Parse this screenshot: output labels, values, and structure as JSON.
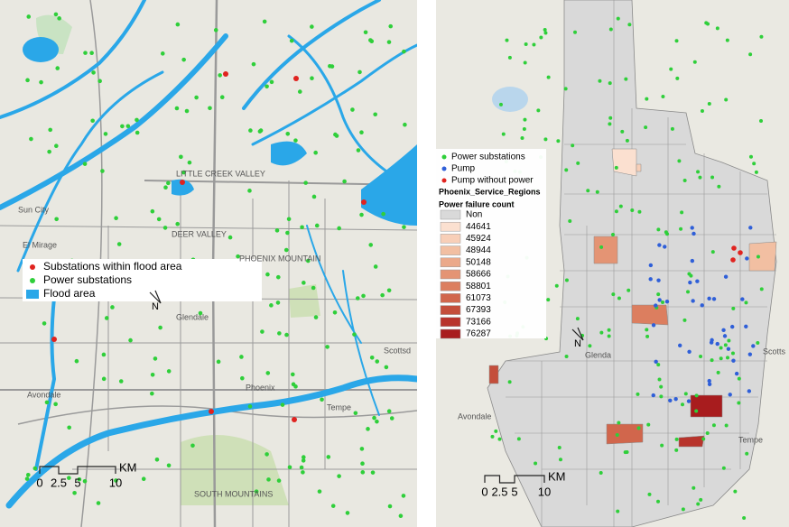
{
  "left_map": {
    "legend": [
      {
        "label": "Substations within flood area",
        "color": "#e0231f"
      },
      {
        "label": "Power substations",
        "color": "#2fcf3a"
      },
      {
        "label": "Flood area",
        "color": "#2aa7e8"
      }
    ],
    "north": "N",
    "scale_bar": {
      "labels": [
        "0",
        "2.5",
        "5",
        "10"
      ],
      "unit": "KM"
    },
    "places": [
      "Sun City",
      "El Mirage",
      "Glendale",
      "Phoenix",
      "Tempe",
      "Scottsd",
      "Avondale",
      "SOUTH MOUNTAINS",
      "LITTLE CREEK VALLEY",
      "DEER VALLEY",
      "PHOENIX MOUNTAIN"
    ]
  },
  "right_map": {
    "legend": [
      {
        "label": "Power substations",
        "color": "#2fcf3a"
      },
      {
        "label": "Pump",
        "color": "#2f5fd8"
      },
      {
        "label": "Pump without power",
        "color": "#e0231f"
      }
    ],
    "layer_title": "Phoenix_Service_Regions",
    "field_title": "Power failure count",
    "classes": [
      {
        "label": "Non",
        "color": "#d9d9d9"
      },
      {
        "label": "44641",
        "color": "#fbe0d0"
      },
      {
        "label": "45924",
        "color": "#f8cfb8"
      },
      {
        "label": "48944",
        "color": "#f2bfa2"
      },
      {
        "label": "50148",
        "color": "#eba98a"
      },
      {
        "label": "58666",
        "color": "#e49474"
      },
      {
        "label": "58801",
        "color": "#dc7e5f"
      },
      {
        "label": "61073",
        "color": "#d1664c"
      },
      {
        "label": "67393",
        "color": "#c44e3b"
      },
      {
        "label": "73166",
        "color": "#b8342c"
      },
      {
        "label": "76287",
        "color": "#a81c1e"
      }
    ],
    "north": "N",
    "scale_bar": {
      "labels": [
        "0",
        "2.5",
        "5",
        "10"
      ],
      "unit": "KM"
    },
    "places": [
      "Glenda",
      "Avondale",
      "Tempe",
      "Scotts"
    ]
  }
}
